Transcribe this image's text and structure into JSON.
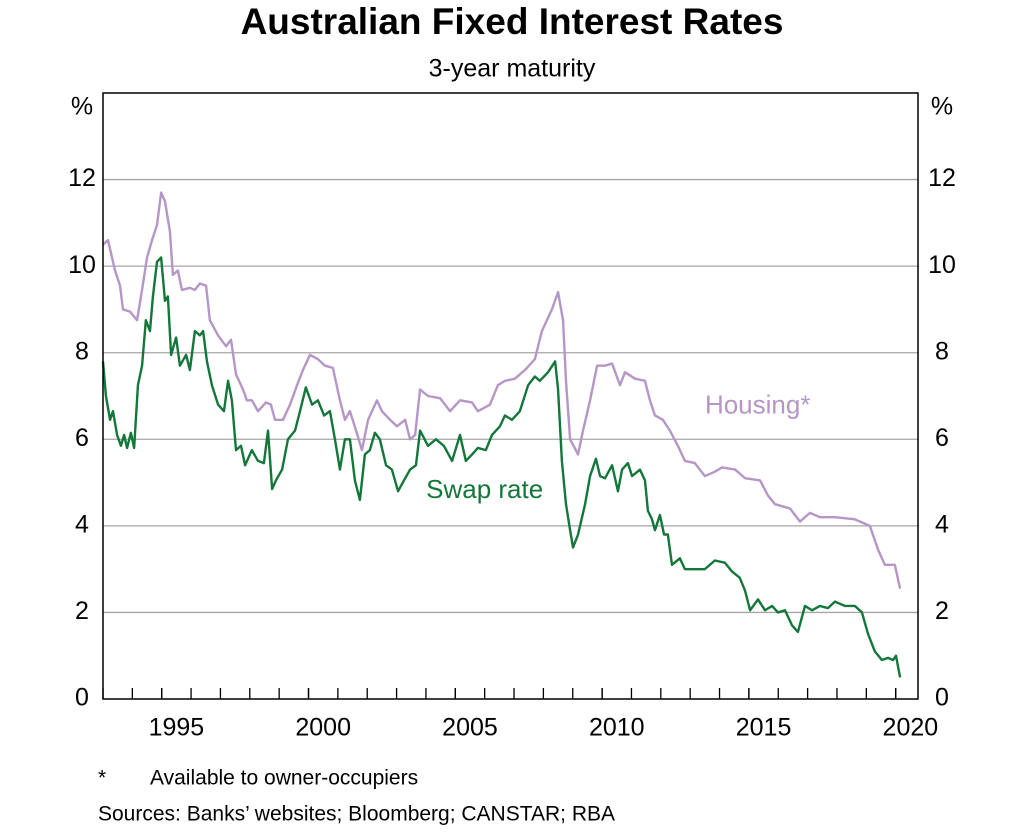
{
  "chart_data": {
    "type": "line",
    "title": "Australian Fixed Interest Rates",
    "subtitle": "3-year maturity",
    "ylabel": "%",
    "y2label": "%",
    "xlim": [
      1993,
      2020.76
    ],
    "xticks": [
      1995,
      2000,
      2005,
      2010,
      2015,
      2020
    ],
    "xminor_ticks": [
      1993,
      1994,
      1995,
      1996,
      1997,
      1998,
      1999,
      2000,
      2001,
      2002,
      2003,
      2004,
      2005,
      2006,
      2007,
      2008,
      2009,
      2010,
      2011,
      2012,
      2013,
      2014,
      2015,
      2016,
      2017,
      2018,
      2019,
      2020
    ],
    "ylim": [
      0,
      14
    ],
    "yticks": [
      0,
      2,
      4,
      6,
      8,
      10,
      12
    ],
    "y2lim": [
      0,
      14
    ],
    "y2ticks": [
      0,
      2,
      4,
      6,
      8,
      10,
      12
    ],
    "grid": true,
    "series": [
      {
        "name": "Housing*",
        "color": "#b596c6",
        "x": [
          1993.0,
          1993.17,
          1993.41,
          1993.58,
          1993.68,
          1993.92,
          1994.16,
          1994.33,
          1994.5,
          1994.67,
          1994.84,
          1994.98,
          1995.11,
          1995.28,
          1995.38,
          1995.55,
          1995.69,
          1995.96,
          1996.13,
          1996.3,
          1996.51,
          1996.64,
          1996.92,
          1997.19,
          1997.36,
          1997.53,
          1997.77,
          1997.9,
          1998.07,
          1998.28,
          1998.55,
          1998.72,
          1998.86,
          1999.13,
          1999.37,
          1999.61,
          1999.81,
          2000.05,
          2000.32,
          2000.56,
          2000.83,
          2001.07,
          2001.24,
          2001.41,
          2001.62,
          2001.82,
          2002.03,
          2002.33,
          2002.5,
          2002.78,
          2003.01,
          2003.29,
          2003.46,
          2003.63,
          2003.8,
          2004.07,
          2004.48,
          2004.82,
          2005.16,
          2005.57,
          2005.77,
          2006.18,
          2006.45,
          2006.69,
          2007.03,
          2007.37,
          2007.71,
          2007.95,
          2008.29,
          2008.5,
          2008.67,
          2008.77,
          2008.91,
          2009.18,
          2009.35,
          2009.59,
          2009.83,
          2010.1,
          2010.34,
          2010.61,
          2010.78,
          2011.12,
          2011.46,
          2011.63,
          2011.8,
          2012.07,
          2012.31,
          2012.58,
          2012.82,
          2013.16,
          2013.5,
          2013.84,
          2014.08,
          2014.53,
          2014.87,
          2015.38,
          2015.65,
          2015.89,
          2016.4,
          2016.74,
          2017.08,
          2017.42,
          2017.93,
          2018.61,
          2019.12,
          2019.4,
          2019.63,
          2019.97,
          2020.15
        ],
        "values": [
          10.5,
          10.6,
          9.9,
          9.55,
          9.0,
          8.95,
          8.75,
          9.45,
          10.2,
          10.6,
          10.95,
          11.7,
          11.5,
          10.8,
          9.8,
          9.9,
          9.45,
          9.5,
          9.45,
          9.6,
          9.55,
          8.75,
          8.4,
          8.15,
          8.3,
          7.5,
          7.15,
          6.9,
          6.9,
          6.65,
          6.85,
          6.8,
          6.45,
          6.45,
          6.8,
          7.25,
          7.6,
          7.95,
          7.85,
          7.7,
          7.65,
          6.9,
          6.45,
          6.65,
          6.2,
          5.75,
          6.45,
          6.9,
          6.65,
          6.45,
          6.3,
          6.45,
          6.0,
          6.1,
          7.15,
          7.0,
          6.95,
          6.65,
          6.9,
          6.85,
          6.65,
          6.8,
          7.25,
          7.35,
          7.4,
          7.6,
          7.85,
          8.5,
          9.0,
          9.4,
          8.75,
          7.35,
          6.0,
          5.65,
          6.2,
          6.9,
          7.7,
          7.7,
          7.75,
          7.25,
          7.55,
          7.4,
          7.35,
          6.9,
          6.55,
          6.45,
          6.2,
          5.85,
          5.5,
          5.45,
          5.15,
          5.25,
          5.35,
          5.3,
          5.1,
          5.05,
          4.7,
          4.5,
          4.4,
          4.1,
          4.3,
          4.2,
          4.2,
          4.15,
          4.0,
          3.45,
          3.1,
          3.1,
          2.55
        ]
      },
      {
        "name": "Swap rate",
        "color": "#14773a",
        "x": [
          1993.0,
          1993.1,
          1993.24,
          1993.34,
          1993.48,
          1993.61,
          1993.72,
          1993.82,
          1993.95,
          1994.06,
          1994.19,
          1994.33,
          1994.46,
          1994.6,
          1994.7,
          1994.84,
          1994.98,
          1995.11,
          1995.21,
          1995.32,
          1995.49,
          1995.62,
          1995.83,
          1995.96,
          1996.13,
          1996.3,
          1996.41,
          1996.54,
          1996.71,
          1996.92,
          1997.12,
          1997.26,
          1997.39,
          1997.53,
          1997.7,
          1997.84,
          1998.07,
          1998.28,
          1998.48,
          1998.62,
          1998.76,
          1998.89,
          1999.1,
          1999.3,
          1999.54,
          1999.71,
          1999.91,
          2000.12,
          2000.32,
          2000.53,
          2000.73,
          2000.9,
          2001.07,
          2001.24,
          2001.41,
          2001.58,
          2001.75,
          2001.92,
          2002.09,
          2002.26,
          2002.43,
          2002.64,
          2002.84,
          2003.05,
          2003.25,
          2003.46,
          2003.66,
          2003.8,
          2004.07,
          2004.34,
          2004.61,
          2004.89,
          2005.16,
          2005.36,
          2005.57,
          2005.77,
          2006.04,
          2006.25,
          2006.52,
          2006.69,
          2006.93,
          2007.2,
          2007.48,
          2007.71,
          2007.88,
          2008.16,
          2008.4,
          2008.5,
          2008.63,
          2008.77,
          2008.91,
          2009.01,
          2009.18,
          2009.42,
          2009.59,
          2009.79,
          2009.93,
          2010.1,
          2010.34,
          2010.54,
          2010.68,
          2010.88,
          2011.02,
          2011.29,
          2011.46,
          2011.56,
          2011.7,
          2011.8,
          2011.97,
          2012.11,
          2012.24,
          2012.38,
          2012.65,
          2012.82,
          2013.16,
          2013.5,
          2013.84,
          2014.18,
          2014.42,
          2014.69,
          2014.87,
          2015.04,
          2015.31,
          2015.55,
          2015.79,
          2015.99,
          2016.23,
          2016.47,
          2016.67,
          2016.91,
          2017.15,
          2017.42,
          2017.69,
          2017.93,
          2018.27,
          2018.61,
          2018.85,
          2019.06,
          2019.29,
          2019.53,
          2019.74,
          2019.91,
          2020.01,
          2020.15
        ],
        "values": [
          7.8,
          7.0,
          6.45,
          6.65,
          6.1,
          5.85,
          6.1,
          5.8,
          6.15,
          5.8,
          7.25,
          7.7,
          8.75,
          8.5,
          9.3,
          10.1,
          10.2,
          9.2,
          9.3,
          7.95,
          8.35,
          7.7,
          7.95,
          7.6,
          8.5,
          8.4,
          8.5,
          7.8,
          7.25,
          6.8,
          6.65,
          7.35,
          6.9,
          5.75,
          5.85,
          5.4,
          5.75,
          5.5,
          5.45,
          6.2,
          4.85,
          5.05,
          5.3,
          6.0,
          6.2,
          6.65,
          7.2,
          6.8,
          6.9,
          6.55,
          6.65,
          6.0,
          5.3,
          6.0,
          6.0,
          5.05,
          4.6,
          5.65,
          5.75,
          6.15,
          6.0,
          5.4,
          5.3,
          4.8,
          5.05,
          5.3,
          5.4,
          6.2,
          5.85,
          6.0,
          5.85,
          5.5,
          6.1,
          5.5,
          5.65,
          5.8,
          5.75,
          6.1,
          6.3,
          6.55,
          6.45,
          6.65,
          7.25,
          7.45,
          7.35,
          7.55,
          7.8,
          7.15,
          5.5,
          4.5,
          3.9,
          3.5,
          3.8,
          4.5,
          5.15,
          5.55,
          5.15,
          5.1,
          5.4,
          4.8,
          5.3,
          5.45,
          5.15,
          5.3,
          5.05,
          4.35,
          4.15,
          3.9,
          4.25,
          3.8,
          3.8,
          3.1,
          3.25,
          3.0,
          3.0,
          3.0,
          3.2,
          3.15,
          2.95,
          2.8,
          2.5,
          2.05,
          2.3,
          2.05,
          2.15,
          2.0,
          2.05,
          1.7,
          1.55,
          2.15,
          2.05,
          2.15,
          2.1,
          2.25,
          2.15,
          2.15,
          2.0,
          1.5,
          1.1,
          0.9,
          0.95,
          0.9,
          1.0,
          0.5
        ]
      }
    ],
    "annotations": [
      {
        "text": "Housing*",
        "x": 2015.3,
        "y": 6.75,
        "series": 0
      },
      {
        "text": "Swap rate",
        "x": 2006.0,
        "y": 4.8,
        "series": 1
      }
    ],
    "footnote": {
      "marker": "*",
      "text": "Available to owner-occupiers"
    },
    "sources": "Sources: Banks’ websites; Bloomberg; CANSTAR; RBA"
  }
}
